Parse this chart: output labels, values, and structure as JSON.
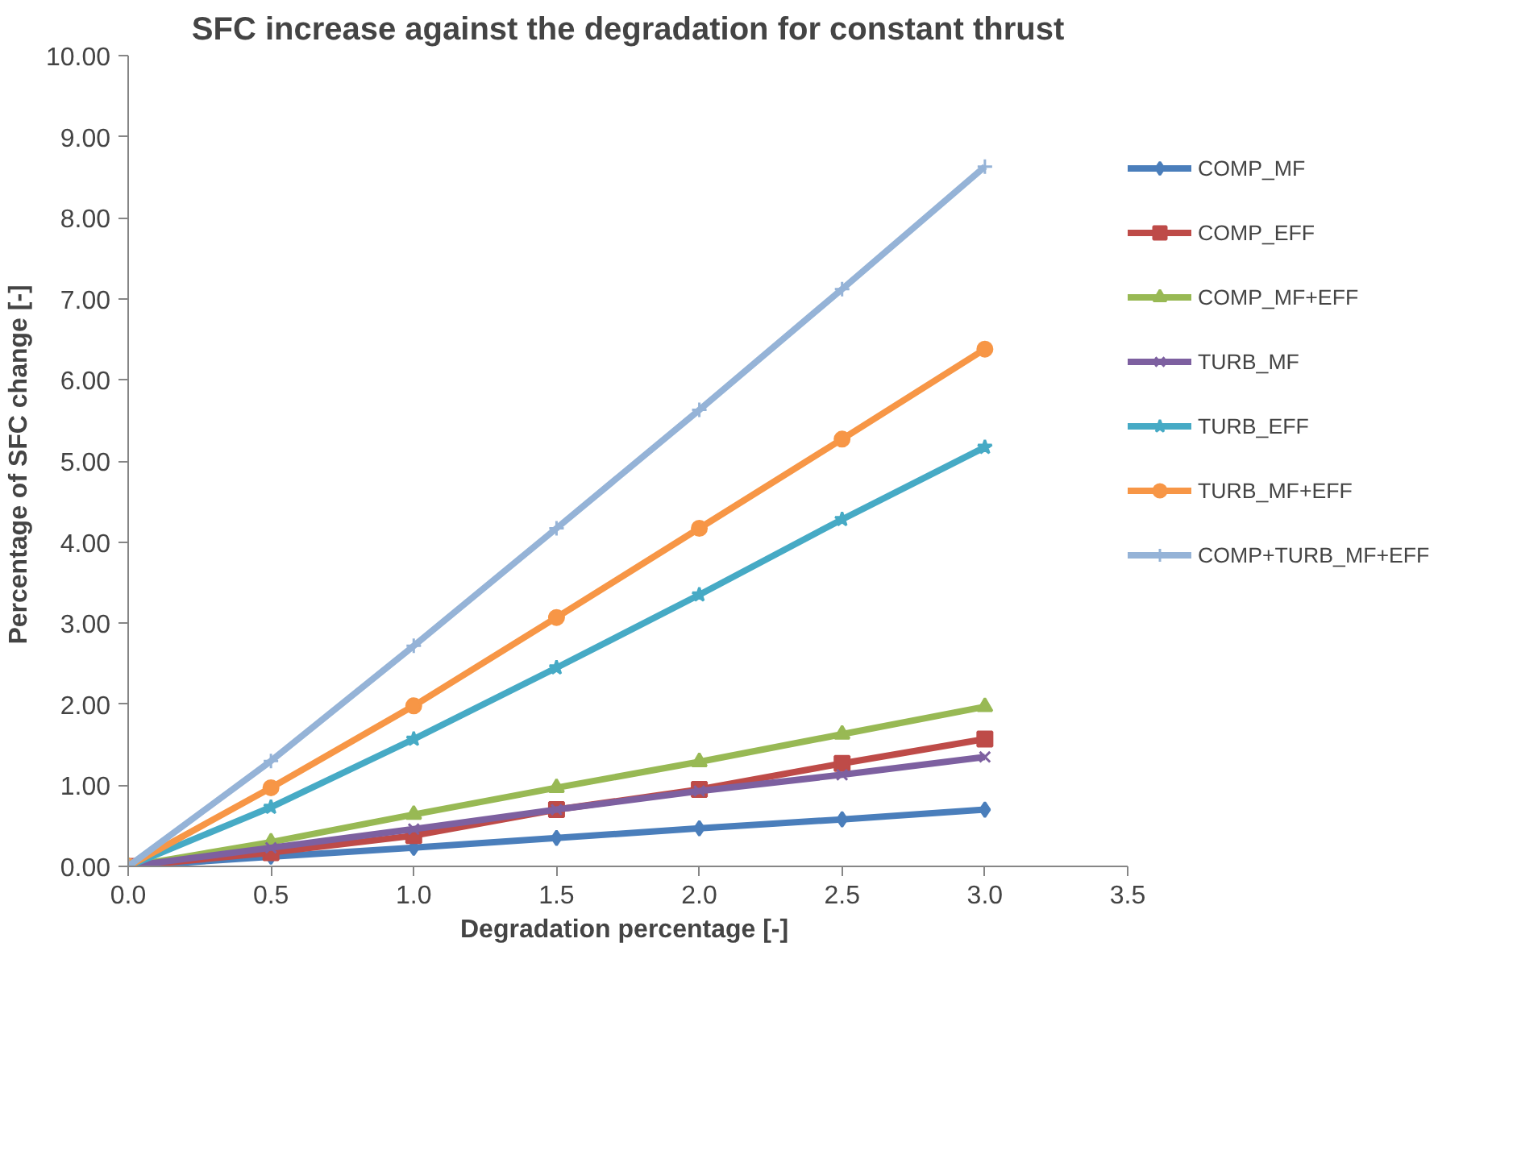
{
  "chart_data": {
    "type": "line",
    "title": "SFC increase against the degradation for constant thrust",
    "xlabel": "Degradation  percentage [-]",
    "ylabel": "Percentage of SFC change  [-]",
    "x": [
      0,
      0.5,
      1.0,
      1.5,
      2.0,
      2.5,
      3.0
    ],
    "series": [
      {
        "name": "COMP_MF",
        "color": "#4a7ebb",
        "marker": "diamond",
        "values": [
          0,
          0.12,
          0.23,
          0.35,
          0.47,
          0.58,
          0.7
        ]
      },
      {
        "name": "COMP_EFF",
        "color": "#be4b48",
        "marker": "square",
        "values": [
          0,
          0.17,
          0.38,
          0.7,
          0.95,
          1.27,
          1.57
        ]
      },
      {
        "name": "COMP_MF+EFF",
        "color": "#98b954",
        "marker": "triangle",
        "values": [
          0,
          0.3,
          0.64,
          0.97,
          1.29,
          1.63,
          1.97
        ]
      },
      {
        "name": "TURB_MF",
        "color": "#7d60a0",
        "marker": "x",
        "values": [
          0,
          0.23,
          0.46,
          0.7,
          0.93,
          1.13,
          1.35
        ]
      },
      {
        "name": "TURB_EFF",
        "color": "#46aac5",
        "marker": "star",
        "values": [
          0,
          0.73,
          1.57,
          2.45,
          3.35,
          4.28,
          5.17
        ]
      },
      {
        "name": "TURB_MF+EFF",
        "color": "#f79646",
        "marker": "circle",
        "values": [
          0,
          0.97,
          1.98,
          3.07,
          4.17,
          5.27,
          6.38
        ]
      },
      {
        "name": "COMP+TURB_MF+EFF",
        "color": "#95b3d7",
        "marker": "cross",
        "values": [
          0,
          1.3,
          2.72,
          4.17,
          5.63,
          7.12,
          8.63
        ]
      }
    ],
    "xlim": [
      0,
      3.5
    ],
    "ylim": [
      0,
      10
    ],
    "xticks": [
      {
        "value": 0,
        "label": "0.0"
      },
      {
        "value": 0.5,
        "label": "0.5"
      },
      {
        "value": 1,
        "label": "1.0"
      },
      {
        "value": 1.5,
        "label": "1.5"
      },
      {
        "value": 2,
        "label": "2.0"
      },
      {
        "value": 2.5,
        "label": "2.5"
      },
      {
        "value": 3,
        "label": "3.0"
      },
      {
        "value": 3.5,
        "label": "3.5"
      }
    ],
    "yticks": [
      {
        "value": 0,
        "label": "0.00"
      },
      {
        "value": 1,
        "label": "1.00"
      },
      {
        "value": 2,
        "label": "2.00"
      },
      {
        "value": 3,
        "label": "3.00"
      },
      {
        "value": 4,
        "label": "4.00"
      },
      {
        "value": 5,
        "label": "5.00"
      },
      {
        "value": 6,
        "label": "6.00"
      },
      {
        "value": 7,
        "label": "7.00"
      },
      {
        "value": 8,
        "label": "8.00"
      },
      {
        "value": 9,
        "label": "9.00"
      },
      {
        "value": 10,
        "label": "10.00"
      }
    ],
    "grid": false,
    "legend": "right",
    "line_style": "solid"
  }
}
